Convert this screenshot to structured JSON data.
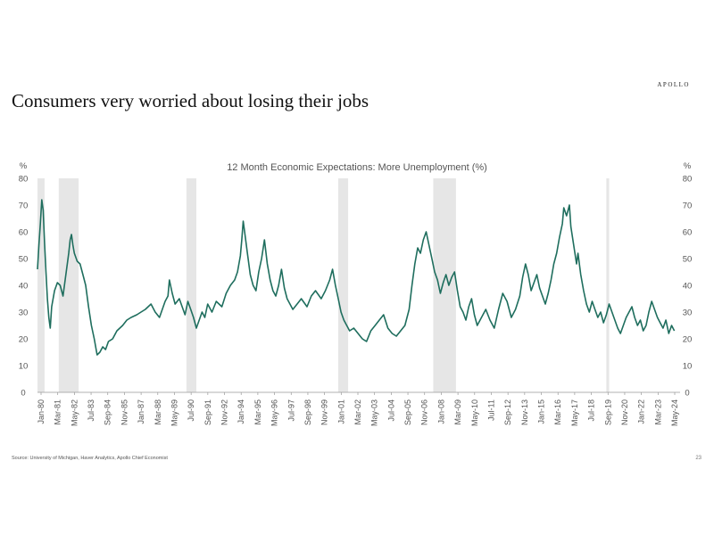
{
  "header": {
    "brand": "APOLLO",
    "headline": "Consumers very worried about losing their jobs"
  },
  "footer": {
    "source": "Source: University of Michigan, Haver Analytics, Apollo Chief Economist",
    "page": "23"
  },
  "colors": {
    "line": "#1f6e5e",
    "recession": "#e6e6e6",
    "axis": "#999999",
    "text": "#555555"
  },
  "chart_data": {
    "type": "line",
    "title": "12 Month Economic Expectations: More Unemployment (%)",
    "ylabel_left": "%",
    "ylabel_right": "%",
    "ylim": [
      0,
      80
    ],
    "yticks": [
      0,
      10,
      20,
      30,
      40,
      50,
      60,
      70,
      80
    ],
    "x_tick_labels": [
      "Jan-80",
      "Mar-81",
      "May-82",
      "Jul-83",
      "Sep-84",
      "Nov-85",
      "Jan-87",
      "Mar-88",
      "May-89",
      "Jul-90",
      "Sep-91",
      "Nov-92",
      "Jan-94",
      "Mar-95",
      "May-96",
      "Jul-97",
      "Sep-98",
      "Nov-99",
      "Jan-01",
      "Mar-02",
      "May-03",
      "Jul-04",
      "Sep-05",
      "Nov-06",
      "Jan-08",
      "Mar-09",
      "May-10",
      "Jul-11",
      "Sep-12",
      "Nov-13",
      "Jan-15",
      "Mar-16",
      "May-17",
      "Jul-18",
      "Sep-19",
      "Nov-20",
      "Jan-22",
      "Mar-23",
      "May-24"
    ],
    "recessions": [
      [
        1980.0,
        1980.5
      ],
      [
        1981.5,
        1982.9
      ],
      [
        1990.5,
        1991.2
      ],
      [
        2001.2,
        2001.9
      ],
      [
        2007.9,
        2009.5
      ],
      [
        2020.1,
        2020.3
      ]
    ],
    "series": [
      {
        "points": [
          [
            1980.0,
            46
          ],
          [
            1980.1,
            55
          ],
          [
            1980.2,
            63
          ],
          [
            1980.3,
            72
          ],
          [
            1980.4,
            68
          ],
          [
            1980.5,
            56
          ],
          [
            1980.6,
            45
          ],
          [
            1980.7,
            35
          ],
          [
            1980.8,
            28
          ],
          [
            1980.9,
            24
          ],
          [
            1981.0,
            32
          ],
          [
            1981.2,
            38
          ],
          [
            1981.4,
            41
          ],
          [
            1981.6,
            40
          ],
          [
            1981.8,
            36
          ],
          [
            1982.0,
            44
          ],
          [
            1982.2,
            52
          ],
          [
            1982.3,
            57
          ],
          [
            1982.4,
            59
          ],
          [
            1982.5,
            55
          ],
          [
            1982.6,
            52
          ],
          [
            1982.8,
            49
          ],
          [
            1983.0,
            48
          ],
          [
            1983.2,
            44
          ],
          [
            1983.4,
            40
          ],
          [
            1983.6,
            32
          ],
          [
            1983.8,
            25
          ],
          [
            1984.0,
            20
          ],
          [
            1984.1,
            17
          ],
          [
            1984.2,
            14
          ],
          [
            1984.4,
            15
          ],
          [
            1984.6,
            17
          ],
          [
            1984.8,
            16
          ],
          [
            1985.0,
            19
          ],
          [
            1985.3,
            20
          ],
          [
            1985.6,
            23
          ],
          [
            1986.0,
            25
          ],
          [
            1986.3,
            27
          ],
          [
            1986.6,
            28
          ],
          [
            1987.0,
            29
          ],
          [
            1987.3,
            30
          ],
          [
            1987.6,
            31
          ],
          [
            1988.0,
            33
          ],
          [
            1988.3,
            30
          ],
          [
            1988.6,
            28
          ],
          [
            1989.0,
            34
          ],
          [
            1989.2,
            36
          ],
          [
            1989.3,
            42
          ],
          [
            1989.5,
            37
          ],
          [
            1989.7,
            33
          ],
          [
            1990.0,
            35
          ],
          [
            1990.2,
            32
          ],
          [
            1990.4,
            29
          ],
          [
            1990.6,
            34
          ],
          [
            1990.8,
            31
          ],
          [
            1991.0,
            28
          ],
          [
            1991.2,
            24
          ],
          [
            1991.4,
            27
          ],
          [
            1991.6,
            30
          ],
          [
            1991.8,
            28
          ],
          [
            1992.0,
            33
          ],
          [
            1992.3,
            30
          ],
          [
            1992.6,
            34
          ],
          [
            1993.0,
            32
          ],
          [
            1993.3,
            37
          ],
          [
            1993.6,
            40
          ],
          [
            1993.9,
            42
          ],
          [
            1994.1,
            45
          ],
          [
            1994.3,
            51
          ],
          [
            1994.4,
            57
          ],
          [
            1994.5,
            64
          ],
          [
            1994.6,
            60
          ],
          [
            1994.8,
            52
          ],
          [
            1995.0,
            44
          ],
          [
            1995.2,
            40
          ],
          [
            1995.4,
            38
          ],
          [
            1995.6,
            45
          ],
          [
            1995.8,
            50
          ],
          [
            1996.0,
            57
          ],
          [
            1996.2,
            48
          ],
          [
            1996.4,
            42
          ],
          [
            1996.6,
            38
          ],
          [
            1996.8,
            36
          ],
          [
            1997.0,
            40
          ],
          [
            1997.2,
            46
          ],
          [
            1997.4,
            39
          ],
          [
            1997.6,
            35
          ],
          [
            1997.8,
            33
          ],
          [
            1998.0,
            31
          ],
          [
            1998.3,
            33
          ],
          [
            1998.6,
            35
          ],
          [
            1999.0,
            32
          ],
          [
            1999.3,
            36
          ],
          [
            1999.6,
            38
          ],
          [
            2000.0,
            35
          ],
          [
            2000.3,
            38
          ],
          [
            2000.6,
            42
          ],
          [
            2000.8,
            46
          ],
          [
            2001.0,
            40
          ],
          [
            2001.2,
            35
          ],
          [
            2001.4,
            30
          ],
          [
            2001.6,
            27
          ],
          [
            2001.8,
            25
          ],
          [
            2002.0,
            23
          ],
          [
            2002.3,
            24
          ],
          [
            2002.6,
            22
          ],
          [
            2002.9,
            20
          ],
          [
            2003.2,
            19
          ],
          [
            2003.5,
            23
          ],
          [
            2003.8,
            25
          ],
          [
            2004.1,
            27
          ],
          [
            2004.4,
            29
          ],
          [
            2004.7,
            24
          ],
          [
            2005.0,
            22
          ],
          [
            2005.3,
            21
          ],
          [
            2005.6,
            23
          ],
          [
            2005.9,
            25
          ],
          [
            2006.2,
            31
          ],
          [
            2006.4,
            40
          ],
          [
            2006.6,
            48
          ],
          [
            2006.8,
            54
          ],
          [
            2007.0,
            52
          ],
          [
            2007.2,
            57
          ],
          [
            2007.4,
            60
          ],
          [
            2007.6,
            55
          ],
          [
            2007.8,
            50
          ],
          [
            2008.0,
            45
          ],
          [
            2008.2,
            42
          ],
          [
            2008.4,
            37
          ],
          [
            2008.6,
            41
          ],
          [
            2008.8,
            44
          ],
          [
            2009.0,
            40
          ],
          [
            2009.2,
            43
          ],
          [
            2009.4,
            45
          ],
          [
            2009.6,
            38
          ],
          [
            2009.8,
            32
          ],
          [
            2010.0,
            30
          ],
          [
            2010.2,
            27
          ],
          [
            2010.4,
            32
          ],
          [
            2010.6,
            35
          ],
          [
            2010.8,
            29
          ],
          [
            2011.0,
            25
          ],
          [
            2011.3,
            28
          ],
          [
            2011.6,
            31
          ],
          [
            2011.9,
            27
          ],
          [
            2012.2,
            24
          ],
          [
            2012.5,
            31
          ],
          [
            2012.8,
            37
          ],
          [
            2013.1,
            34
          ],
          [
            2013.4,
            28
          ],
          [
            2013.7,
            31
          ],
          [
            2014.0,
            36
          ],
          [
            2014.2,
            43
          ],
          [
            2014.4,
            48
          ],
          [
            2014.6,
            44
          ],
          [
            2014.8,
            38
          ],
          [
            2015.0,
            41
          ],
          [
            2015.2,
            44
          ],
          [
            2015.4,
            39
          ],
          [
            2015.6,
            36
          ],
          [
            2015.8,
            33
          ],
          [
            2016.0,
            37
          ],
          [
            2016.2,
            42
          ],
          [
            2016.4,
            48
          ],
          [
            2016.6,
            52
          ],
          [
            2016.8,
            58
          ],
          [
            2017.0,
            63
          ],
          [
            2017.1,
            69
          ],
          [
            2017.3,
            66
          ],
          [
            2017.5,
            70
          ],
          [
            2017.6,
            62
          ],
          [
            2017.8,
            55
          ],
          [
            2018.0,
            48
          ],
          [
            2018.1,
            52
          ],
          [
            2018.3,
            44
          ],
          [
            2018.5,
            38
          ],
          [
            2018.7,
            33
          ],
          [
            2018.9,
            30
          ],
          [
            2019.1,
            34
          ],
          [
            2019.3,
            31
          ],
          [
            2019.5,
            28
          ],
          [
            2019.7,
            30
          ],
          [
            2019.9,
            26
          ],
          [
            2020.1,
            29
          ],
          [
            2020.3,
            33
          ],
          [
            2020.5,
            30
          ],
          [
            2020.7,
            27
          ],
          [
            2020.9,
            24
          ],
          [
            2021.1,
            22
          ],
          [
            2021.3,
            25
          ],
          [
            2021.5,
            28
          ],
          [
            2021.7,
            30
          ],
          [
            2021.9,
            32
          ],
          [
            2022.1,
            28
          ],
          [
            2022.3,
            25
          ],
          [
            2022.5,
            27
          ],
          [
            2022.7,
            23
          ],
          [
            2022.9,
            25
          ],
          [
            2023.1,
            30
          ],
          [
            2023.3,
            34
          ],
          [
            2023.5,
            31
          ],
          [
            2023.7,
            28
          ],
          [
            2023.9,
            26
          ],
          [
            2024.1,
            24
          ],
          [
            2024.3,
            27
          ],
          [
            2024.5,
            22
          ],
          [
            2024.7,
            25
          ],
          [
            2024.9,
            23
          ]
        ]
      }
    ]
  }
}
